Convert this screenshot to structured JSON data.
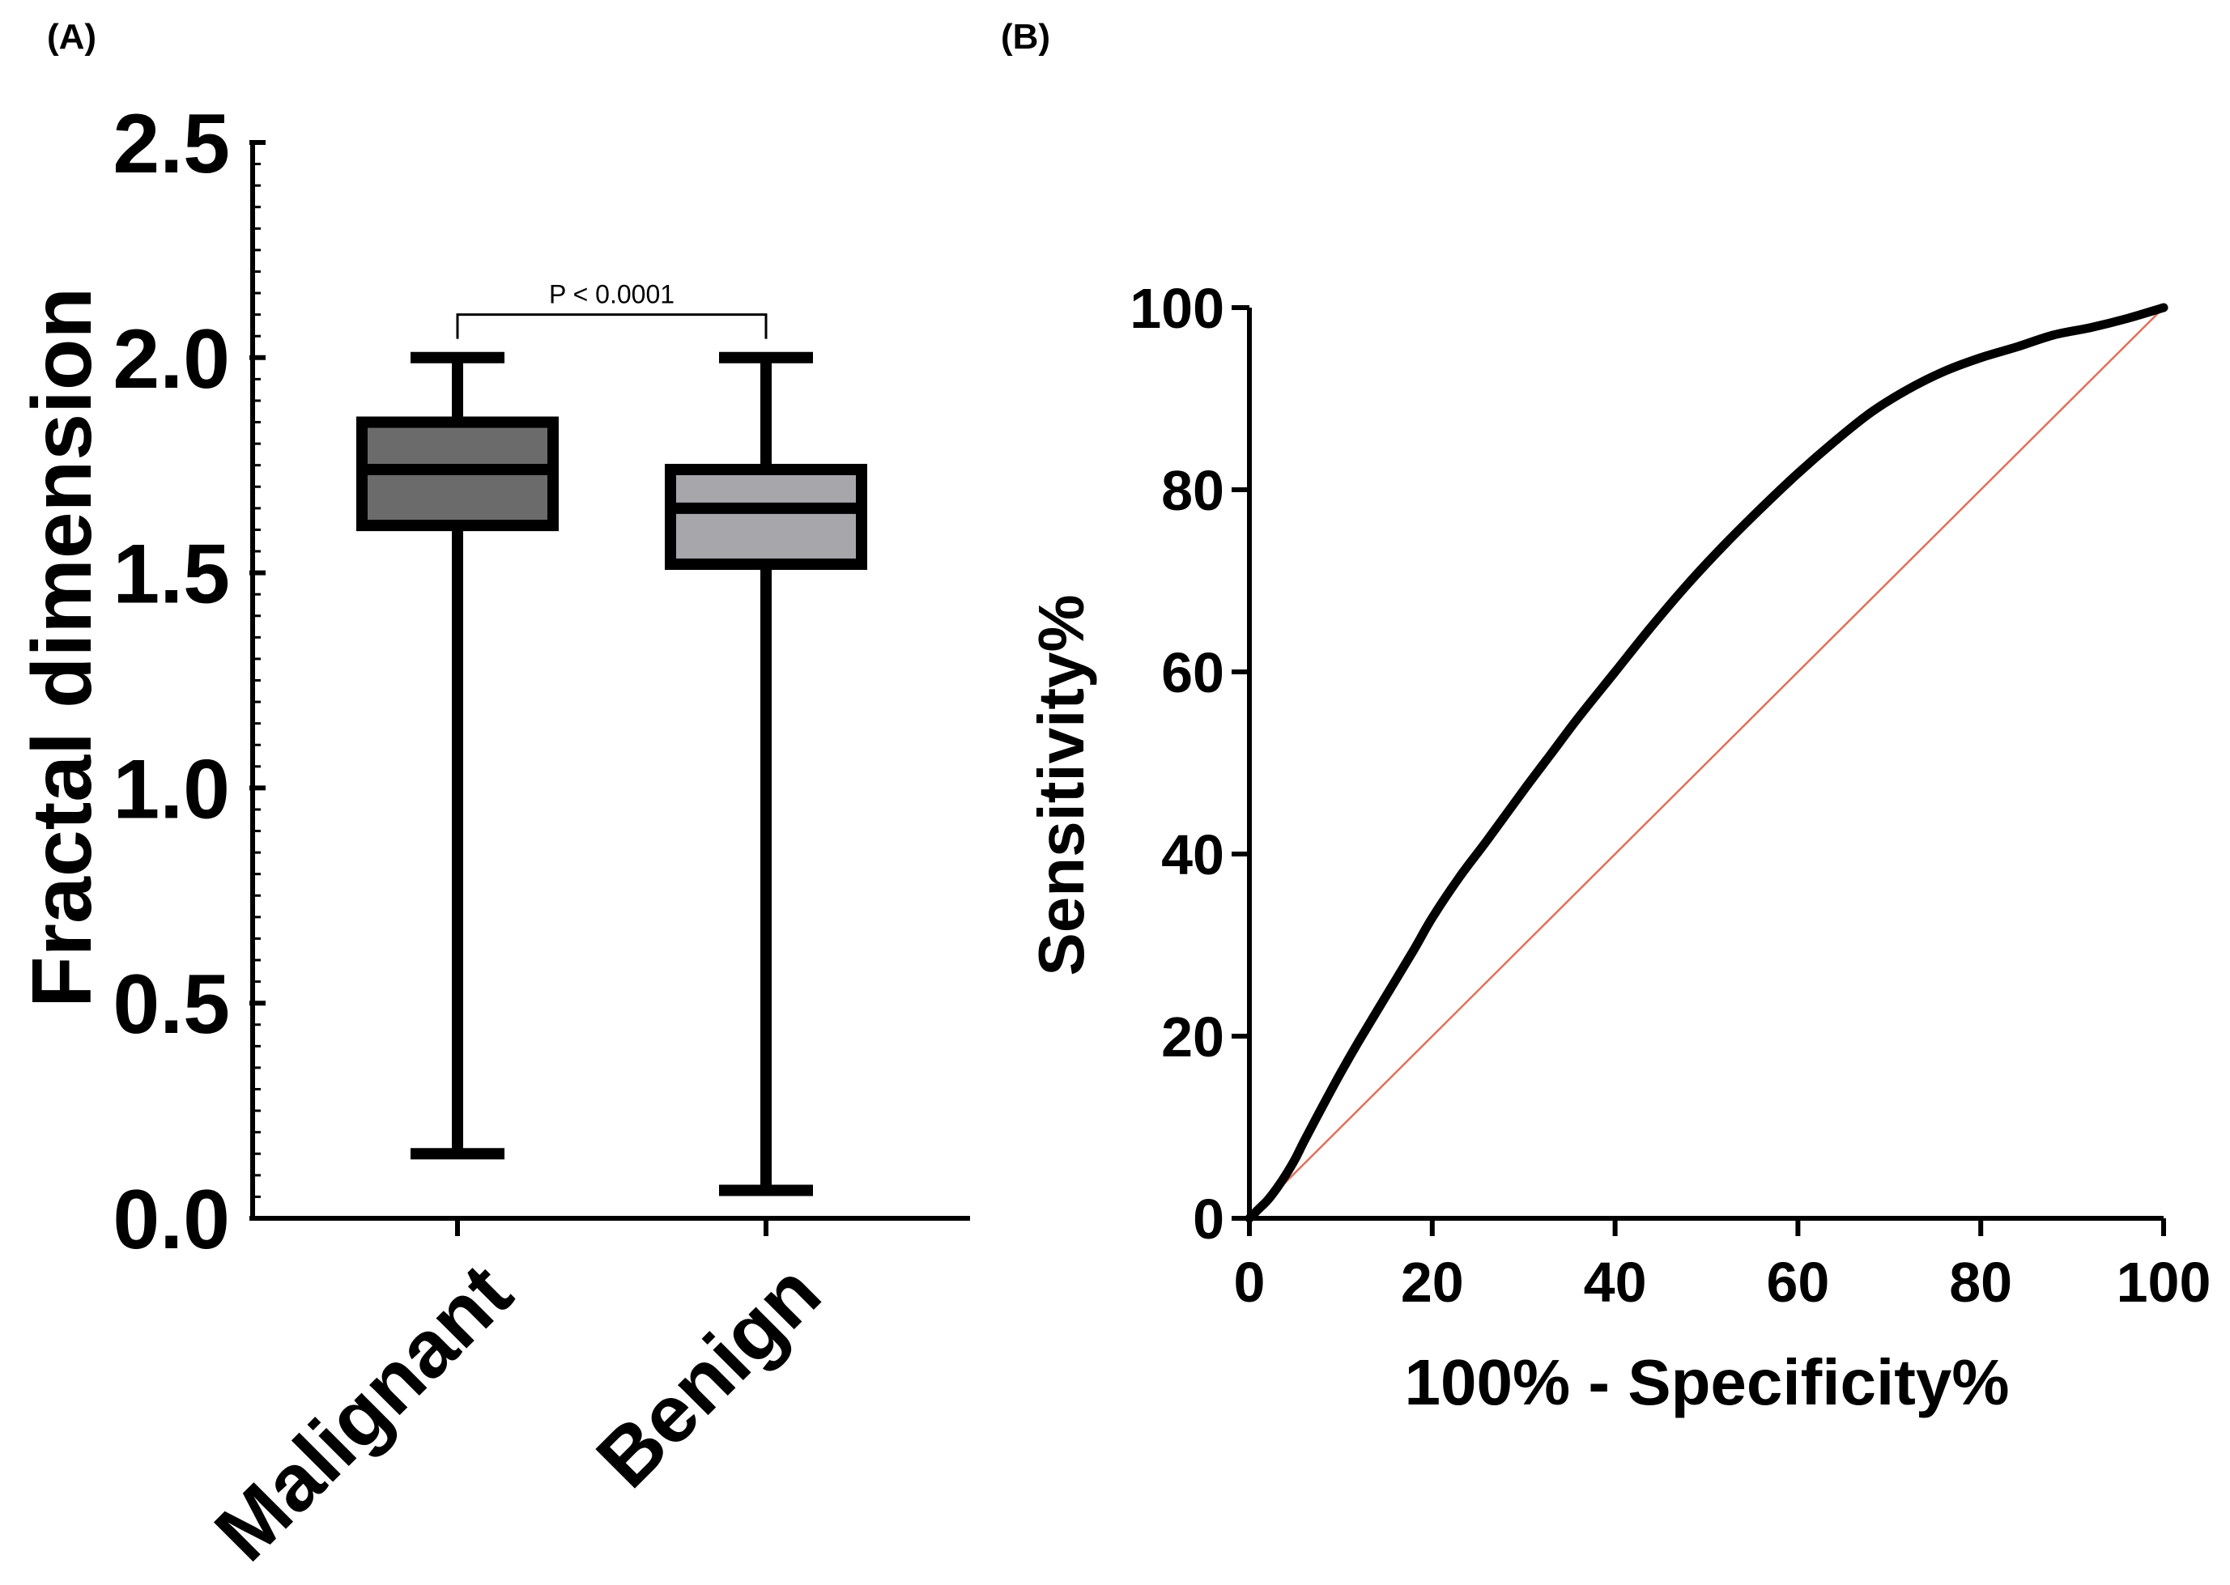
{
  "chart_data": [
    {
      "panel": "(A)",
      "type": "boxplot",
      "ylabel": "Fractal dimension",
      "ylim": [
        0.0,
        2.5
      ],
      "yticks": [
        "0.0",
        "0.5",
        "1.0",
        "1.5",
        "2.0",
        "2.5"
      ],
      "yticks_values": [
        0.0,
        0.5,
        1.0,
        1.5,
        2.0,
        2.5
      ],
      "categories": [
        "Malignant",
        "Benign"
      ],
      "boxes": [
        {
          "name": "Malignant",
          "min": 0.15,
          "q1": 1.61,
          "median": 1.74,
          "q3": 1.85,
          "max": 2.0,
          "color": "#6b6b6b"
        },
        {
          "name": "Benign",
          "min": 0.065,
          "q1": 1.52,
          "median": 1.65,
          "q3": 1.74,
          "max": 2.0,
          "color": "#a6a6ab"
        }
      ],
      "annotation": {
        "text": "P < 0.0001",
        "between": [
          "Malignant",
          "Benign"
        ],
        "y": 2.1
      }
    },
    {
      "panel": "(B)",
      "type": "line",
      "xlabel": "100% - Specificity%",
      "ylabel": "Sensitivity%",
      "xlim": [
        0,
        100
      ],
      "ylim": [
        0,
        100
      ],
      "xticks": [
        "0",
        "20",
        "40",
        "60",
        "80",
        "100"
      ],
      "yticks": [
        "0",
        "20",
        "40",
        "60",
        "80",
        "100"
      ],
      "series": [
        {
          "name": "ROC curve",
          "color": "#000000",
          "x": [
            0,
            1,
            2,
            3,
            4,
            5,
            6,
            8,
            10,
            12,
            15,
            18,
            20,
            23,
            26,
            30,
            33,
            36,
            40,
            44,
            48,
            52,
            56,
            60,
            64,
            68,
            72,
            76,
            80,
            84,
            88,
            92,
            96,
            100
          ],
          "y": [
            0,
            1,
            2,
            3.3,
            4.8,
            6.5,
            8.5,
            12.3,
            16,
            19.5,
            24.5,
            29.5,
            33,
            37.5,
            41.5,
            47,
            51,
            55,
            60,
            65,
            69.7,
            74,
            78,
            81.8,
            85.3,
            88.5,
            91,
            93,
            94.5,
            95.7,
            97,
            97.8,
            98.8,
            100
          ]
        },
        {
          "name": "Reference line",
          "color": "#e0705a",
          "x": [
            0,
            100
          ],
          "y": [
            0,
            100
          ]
        }
      ]
    }
  ]
}
